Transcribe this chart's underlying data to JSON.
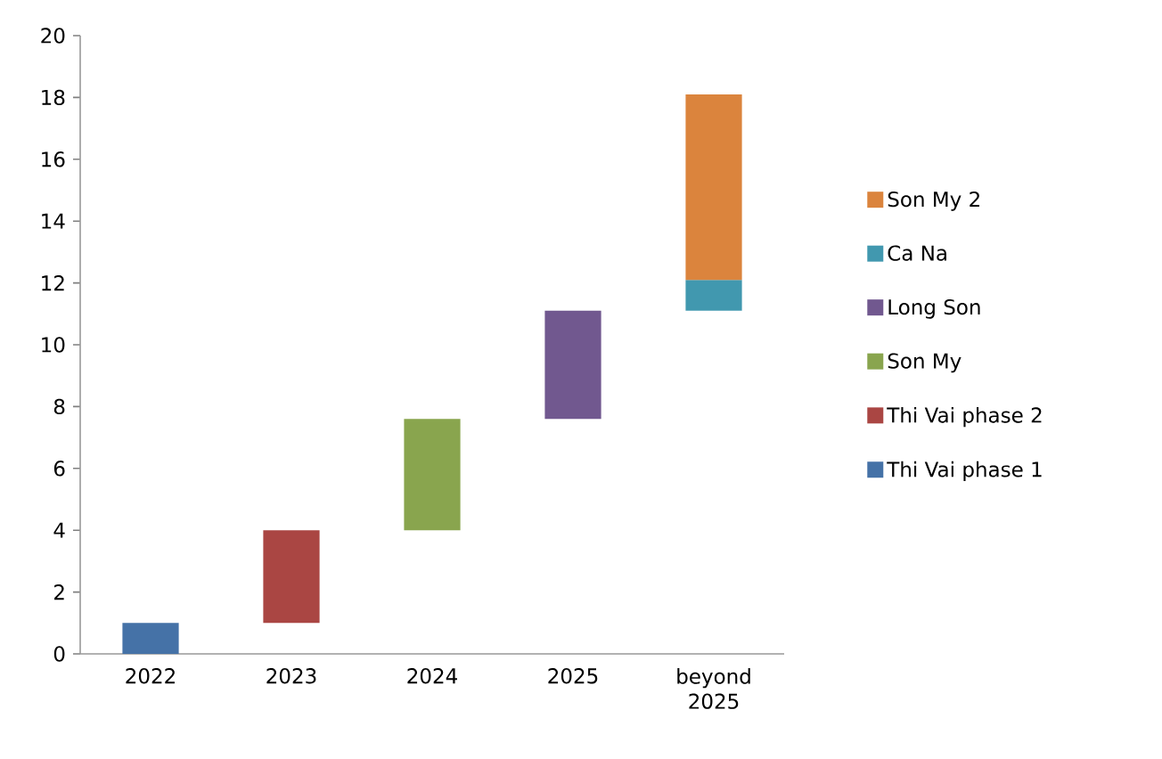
{
  "chart_data": {
    "type": "bar",
    "categories": [
      "2022",
      "2023",
      "2024",
      "2025",
      "beyond 2025"
    ],
    "series": [
      {
        "name": "Thi Vai phase 1",
        "color": "#4572a7",
        "values": [
          1,
          null,
          null,
          null,
          null
        ],
        "base": [
          0,
          null,
          null,
          null,
          null
        ]
      },
      {
        "name": "Thi Vai phase 2",
        "color": "#aa4643",
        "values": [
          null,
          3,
          null,
          null,
          null
        ],
        "base": [
          null,
          1,
          null,
          null,
          null
        ]
      },
      {
        "name": "Son My",
        "color": "#89a54e",
        "values": [
          null,
          null,
          3.6,
          null,
          null
        ],
        "base": [
          null,
          null,
          4,
          null,
          null
        ]
      },
      {
        "name": "Long Son",
        "color": "#71588f",
        "values": [
          null,
          null,
          null,
          3.5,
          null
        ],
        "base": [
          null,
          null,
          null,
          7.6,
          null
        ]
      },
      {
        "name": "Ca Na",
        "color": "#4198af",
        "values": [
          null,
          null,
          null,
          null,
          1
        ],
        "base": [
          null,
          null,
          null,
          null,
          11.1
        ]
      },
      {
        "name": "Son My 2",
        "color": "#db843d",
        "values": [
          null,
          null,
          null,
          null,
          6
        ],
        "base": [
          null,
          null,
          null,
          null,
          12.1
        ]
      }
    ],
    "ylim": [
      0,
      20
    ],
    "yticks": [
      0,
      2,
      4,
      6,
      8,
      10,
      12,
      14,
      16,
      18,
      20
    ],
    "legend": "right"
  }
}
